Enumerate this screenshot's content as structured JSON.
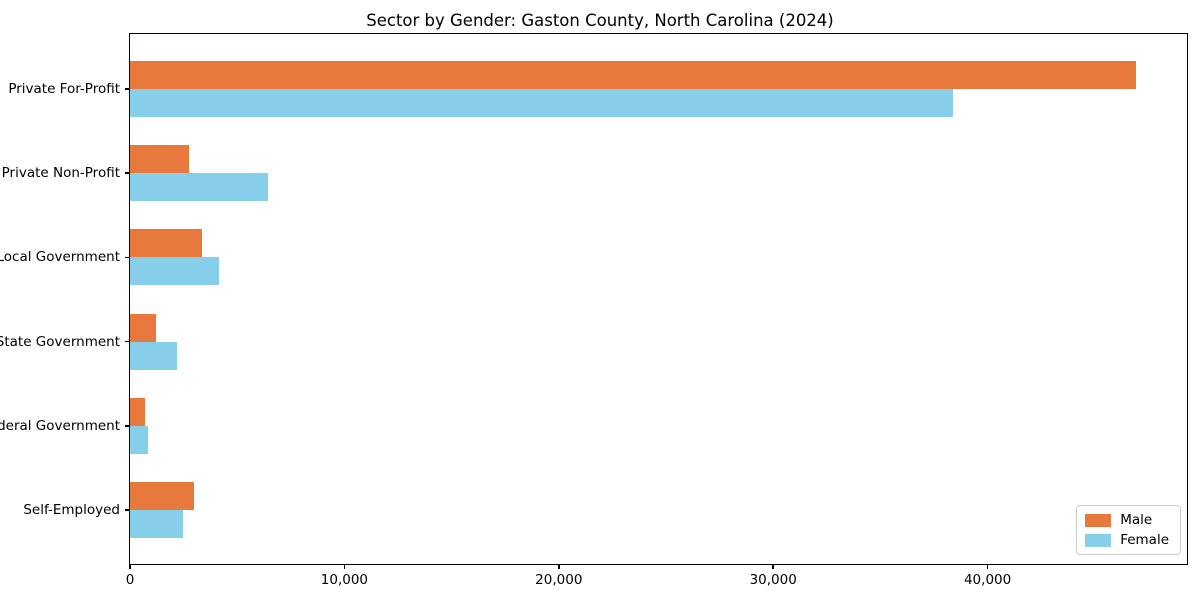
{
  "title": "Sector by Gender: Gaston County, North Carolina (2024)",
  "colors": {
    "male": "#E8793D",
    "female": "#87CEEB",
    "axis": "#000000",
    "legend_border": "#cccccc",
    "background": "#ffffff"
  },
  "legend": {
    "position": "lower right",
    "items": [
      {
        "label": "Male"
      },
      {
        "label": "Female"
      }
    ]
  },
  "chart_data": {
    "type": "bar",
    "orientation": "horizontal",
    "title": "Sector by Gender: Gaston County, North Carolina (2024)",
    "categories": [
      "Private For-Profit",
      "Private Non-Profit",
      "Local Government",
      "State Government",
      "Federal Government",
      "Self-Employed"
    ],
    "series": [
      {
        "name": "Male",
        "color": "#E8793D",
        "values": [
          46900,
          2750,
          3350,
          1200,
          700,
          3000
        ]
      },
      {
        "name": "Female",
        "color": "#87CEEB",
        "values": [
          38400,
          6450,
          4150,
          2200,
          850,
          2450
        ]
      }
    ],
    "xlabel": "",
    "ylabel": "",
    "xlim": [
      0,
      49300
    ],
    "xticks": [
      0,
      10000,
      20000,
      30000,
      40000
    ],
    "xtick_labels": [
      "0",
      "10,000",
      "20,000",
      "30,000",
      "40,000"
    ],
    "grid": false,
    "legend_position": "lower right"
  }
}
